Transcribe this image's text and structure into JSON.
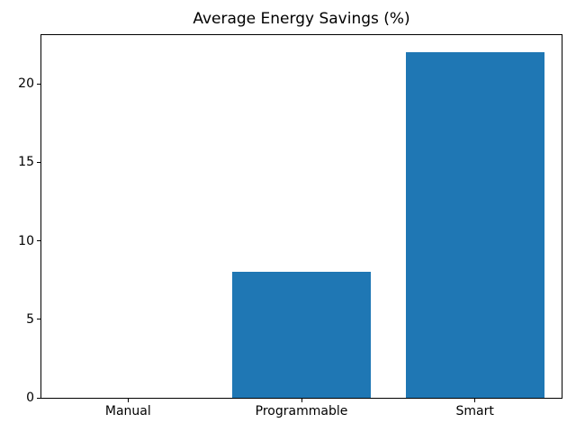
{
  "figure": {
    "background": "#ffffff",
    "text_color": "#000000"
  },
  "chart_data": {
    "type": "bar",
    "title": "Average Energy Savings (%)",
    "categories": [
      "Manual",
      "Programmable",
      "Smart"
    ],
    "values": [
      0,
      8,
      22
    ],
    "xlabel": "",
    "ylabel": "",
    "ylim": [
      0,
      23.1
    ],
    "yticks": [
      0,
      5,
      10,
      15,
      20
    ],
    "bar_color": "#1f77b4",
    "bar_width_fraction": 0.8,
    "grid": false,
    "legend_position": "none"
  }
}
